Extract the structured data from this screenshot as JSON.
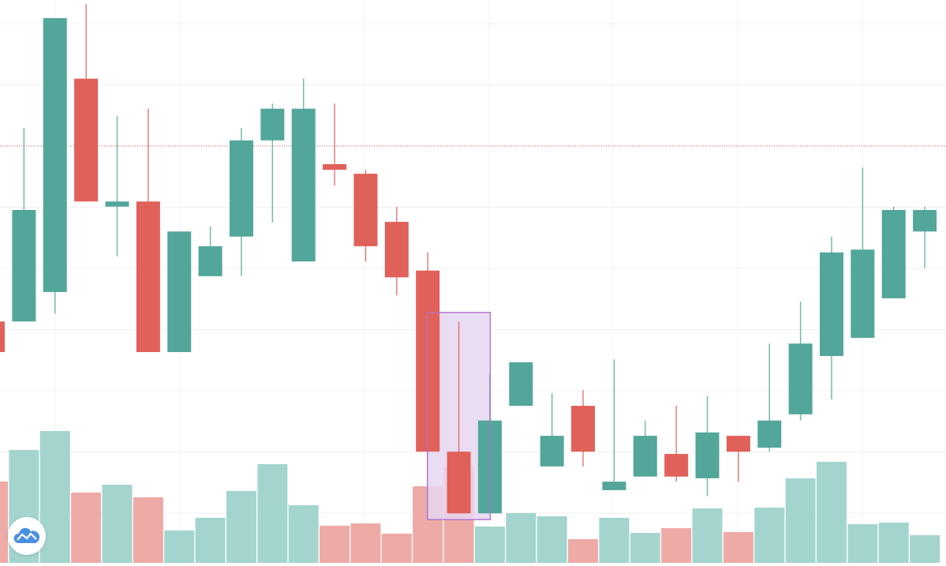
{
  "chart_data": {
    "type": "candlestick",
    "title": "",
    "xlabel": "",
    "ylabel": "",
    "ylim": [
      0,
      100
    ],
    "grid": true,
    "colors": {
      "up": "#52a69a",
      "down": "#e0605a",
      "volume_up": "#a3d5ce",
      "volume_down": "#eeaaa6",
      "highlight_fill": "#e6d6f0",
      "highlight_stroke": "#b070d0",
      "price_line": "#e0605a"
    },
    "ohlc": [
      [
        43.2,
        43.2,
        37.8,
        37.8
      ],
      [
        43.2,
        77.4,
        43.2,
        62.9
      ],
      [
        48.4,
        96.8,
        44.6,
        96.8
      ],
      [
        86.1,
        99.3,
        64.4,
        64.4
      ],
      [
        63.5,
        79.5,
        54.7,
        64.4
      ],
      [
        64.4,
        80.8,
        37.8,
        37.8
      ],
      [
        37.8,
        59.1,
        37.8,
        59.1
      ],
      [
        51.2,
        60.0,
        51.2,
        56.5
      ],
      [
        58.2,
        77.4,
        51.2,
        75.2
      ],
      [
        75.2,
        81.7,
        60.7,
        80.8
      ],
      [
        53.8,
        86.1,
        53.8,
        80.8
      ],
      [
        71.0,
        81.7,
        67.2,
        70.0
      ],
      [
        69.3,
        70.0,
        53.8,
        56.5
      ],
      [
        60.8,
        63.5,
        47.8,
        51.0
      ],
      [
        52.2,
        55.4,
        20.2,
        20.2
      ],
      [
        20.2,
        43.2,
        9.3,
        9.3
      ],
      [
        9.3,
        33.9,
        9.3,
        25.7
      ],
      [
        28.3,
        36.0,
        28.3,
        36.0
      ],
      [
        17.6,
        30.5,
        17.6,
        23.0
      ],
      [
        28.3,
        31.1,
        17.6,
        20.2
      ],
      [
        13.4,
        36.5,
        13.4,
        14.9
      ],
      [
        15.8,
        25.7,
        15.8,
        23.0
      ],
      [
        19.8,
        28.3,
        14.9,
        15.8
      ],
      [
        15.5,
        30.0,
        12.3,
        23.6
      ],
      [
        23.0,
        23.0,
        14.9,
        20.2
      ],
      [
        20.9,
        39.3,
        20.2,
        25.7
      ],
      [
        26.8,
        46.7,
        25.7,
        39.3
      ],
      [
        37.1,
        58.2,
        29.4,
        55.4
      ],
      [
        40.3,
        70.4,
        40.3,
        55.9
      ],
      [
        47.3,
        63.5,
        47.3,
        62.9
      ],
      [
        59.1,
        63.5,
        52.6,
        62.9
      ]
    ],
    "volume": [
      103,
      143,
      167,
      89,
      99,
      83,
      41,
      57,
      91,
      125,
      73,
      47,
      50,
      37,
      97,
      121,
      46,
      63,
      59,
      30,
      57,
      38,
      44,
      69,
      39,
      70,
      107,
      128,
      49,
      51,
      35
    ],
    "price_line": 74.2,
    "highlight": {
      "from_index": 14,
      "to_index": 16,
      "price_high": 44.8,
      "price_low": 8.2
    }
  },
  "logo": {
    "icon": "cloud-chart-logo"
  }
}
